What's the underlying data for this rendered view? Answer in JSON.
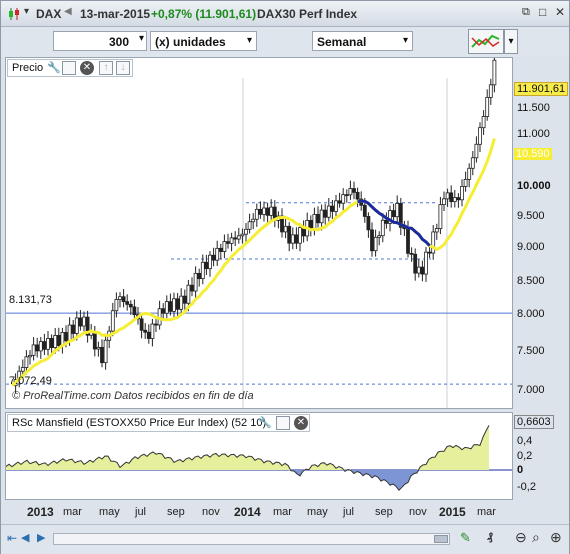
{
  "window": {
    "symbol": "DAX",
    "date": "13-mar-2015",
    "change": "+0,87% (11.901,61)",
    "name": "DAX30 Perf Index"
  },
  "toolbar": {
    "units_value": "300",
    "units_label": "(x) unidades",
    "period": "Semanal"
  },
  "price_panel": {
    "title": "Precio",
    "labels": {
      "last": "11.901,61",
      "ma": "10.590",
      "hline1": "8.131,73",
      "hline2": "7.072,49"
    },
    "y_ticks": [
      "11.500",
      "11.000",
      "10.500",
      "10.000",
      "9.500",
      "9.000",
      "8.500",
      "8.000",
      "7.500",
      "7.000"
    ],
    "footer": "© ProRealTime.com  Datos recibidos en fin de día"
  },
  "indicator_panel": {
    "title": "RSc Mansfield (ESTOXX50 Price Eur Index) (52 10)",
    "y_ticks": [
      "0,6603",
      "0,4",
      "0,2",
      "0",
      "-0,2"
    ]
  },
  "x_axis": {
    "labels": [
      "2013",
      "mar",
      "may",
      "jul",
      "sep",
      "nov",
      "2014",
      "mar",
      "may",
      "jul",
      "sep",
      "nov",
      "2015",
      "mar"
    ]
  },
  "colors": {
    "candle": "#222222",
    "ma_yellow": "#f5ee35",
    "ma_blue": "#1a2aa0",
    "ind_pos": "#e6ef9c",
    "ind_neg": "#7d95d4",
    "last_label_bg": "#f7ec4a",
    "grid_line": "#4f74d4"
  }
}
